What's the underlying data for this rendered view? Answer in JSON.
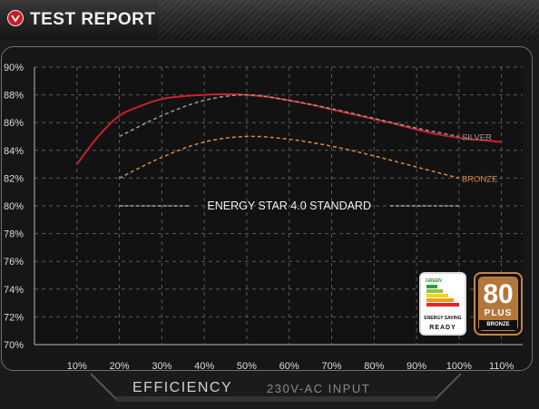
{
  "header": {
    "title": "TEST REPORT"
  },
  "footer": {
    "label": "EFFICIENCY",
    "sublabel": "230V-AC INPUT"
  },
  "colors": {
    "main_curve": "#cc1f2b",
    "silver": "#9a9a9a",
    "bronze": "#d98a3d",
    "grid": "#5a5a5a"
  },
  "badges": {
    "energy": {
      "top": "GREEN",
      "saving": "ENERGY SAVING",
      "ready": "READY"
    },
    "plus": {
      "number": "80",
      "plus": "PLUS",
      "tier": "BRONZE"
    }
  },
  "chart_data": {
    "type": "line",
    "x_ticks": [
      "10%",
      "20%",
      "30%",
      "40%",
      "50%",
      "60%",
      "70%",
      "80%",
      "90%",
      "100%",
      "110%"
    ],
    "y_ticks": [
      "70%",
      "72%",
      "74%",
      "76%",
      "78%",
      "80%",
      "82%",
      "84%",
      "86%",
      "88%",
      "90%"
    ],
    "xlim": [
      0,
      115
    ],
    "ylim": [
      70,
      90
    ],
    "grid": true,
    "series": [
      {
        "name": "",
        "style": "solid",
        "x": [
          10,
          15,
          20,
          25,
          30,
          35,
          40,
          45,
          50,
          55,
          60,
          65,
          70,
          75,
          80,
          85,
          90,
          95,
          100,
          105,
          110
        ],
        "y": [
          83.0,
          85.0,
          86.5,
          87.2,
          87.7,
          87.9,
          88.0,
          88.05,
          88.0,
          87.85,
          87.6,
          87.3,
          86.95,
          86.6,
          86.25,
          85.9,
          85.5,
          85.15,
          84.9,
          84.75,
          84.6
        ]
      },
      {
        "name": "SILVER",
        "style": "dashed",
        "x": [
          20,
          30,
          40,
          50,
          60,
          70,
          80,
          90,
          100
        ],
        "y": [
          85.0,
          86.5,
          87.6,
          88.0,
          87.6,
          87.0,
          86.3,
          85.6,
          85.0
        ]
      },
      {
        "name": "BRONZE",
        "style": "dashed",
        "x": [
          20,
          30,
          40,
          50,
          60,
          70,
          80,
          90,
          100
        ],
        "y": [
          82.0,
          83.5,
          84.6,
          85.0,
          84.8,
          84.3,
          83.6,
          82.8,
          82.0
        ]
      }
    ],
    "annotations": [
      {
        "text": "ENERGY STAR 4.0 STANDARD",
        "y": 80,
        "x_range": [
          20,
          100
        ]
      }
    ]
  }
}
